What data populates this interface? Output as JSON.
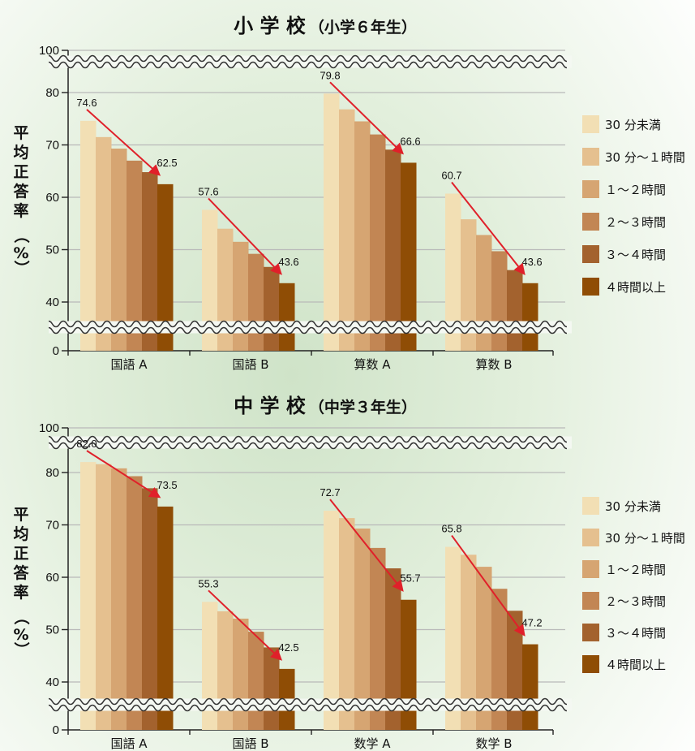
{
  "colors": [
    "#f2dfb4",
    "#e5c08f",
    "#d6a572",
    "#c28654",
    "#a3622e",
    "#8f4d05"
  ],
  "arrow_color": "#e0202a",
  "chart_data": [
    {
      "type": "bar",
      "title": "小 学 校",
      "subtitle": "（小学６年生）",
      "ylabel": "平均正答率（%）",
      "ylim": [
        40,
        100
      ],
      "y_ticks": [
        "0",
        "40",
        "50",
        "60",
        "70",
        "80",
        "100"
      ],
      "axis_break": true,
      "grid": true,
      "legend_position": "right",
      "categories": [
        "国語 A",
        "国語 B",
        "算数 A",
        "算数 B"
      ],
      "series": [
        {
          "name": "30 分未満",
          "values": [
            74.6,
            57.6,
            79.8,
            60.7
          ]
        },
        {
          "name": "30 分～１時間",
          "values": [
            71.5,
            54.0,
            76.8,
            55.8
          ]
        },
        {
          "name": "１～２時間",
          "values": [
            69.3,
            51.5,
            74.5,
            52.8
          ]
        },
        {
          "name": "２～３時間",
          "values": [
            67.0,
            49.2,
            72.0,
            49.7
          ]
        },
        {
          "name": "３～４時間",
          "values": [
            64.8,
            46.7,
            69.1,
            46.1
          ]
        },
        {
          "name": "４時間以上",
          "values": [
            62.5,
            43.6,
            66.6,
            43.6
          ]
        }
      ],
      "labels": [
        [
          "74.6",
          "62.5"
        ],
        [
          "57.6",
          "43.6"
        ],
        [
          "79.8",
          "66.6"
        ],
        [
          "60.7",
          "43.6"
        ]
      ]
    },
    {
      "type": "bar",
      "title": "中 学 校",
      "subtitle": "（中学３年生）",
      "ylabel": "平均正答率（%）",
      "ylim": [
        40,
        100
      ],
      "y_ticks": [
        "0",
        "40",
        "50",
        "60",
        "70",
        "80",
        "100"
      ],
      "axis_break": true,
      "grid": true,
      "legend_position": "right",
      "categories": [
        "国語 A",
        "国語 B",
        "数学 A",
        "数学 B"
      ],
      "series": [
        {
          "name": "30 分未満",
          "values": [
            82.0,
            55.3,
            72.7,
            65.8
          ]
        },
        {
          "name": "30 分～１時間",
          "values": [
            81.6,
            53.5,
            71.3,
            64.3
          ]
        },
        {
          "name": "１～２時間",
          "values": [
            80.8,
            52.1,
            69.3,
            62.0
          ]
        },
        {
          "name": "２～３時間",
          "values": [
            79.3,
            49.6,
            65.6,
            57.8
          ]
        },
        {
          "name": "３～４時間",
          "values": [
            77.0,
            46.6,
            61.7,
            53.6
          ]
        },
        {
          "name": "４時間以上",
          "values": [
            73.5,
            42.5,
            55.7,
            47.2
          ]
        }
      ],
      "labels": [
        [
          "82.0",
          "73.5"
        ],
        [
          "55.3",
          "42.5"
        ],
        [
          "72.7",
          "55.7"
        ],
        [
          "65.8",
          "47.2"
        ]
      ]
    }
  ]
}
